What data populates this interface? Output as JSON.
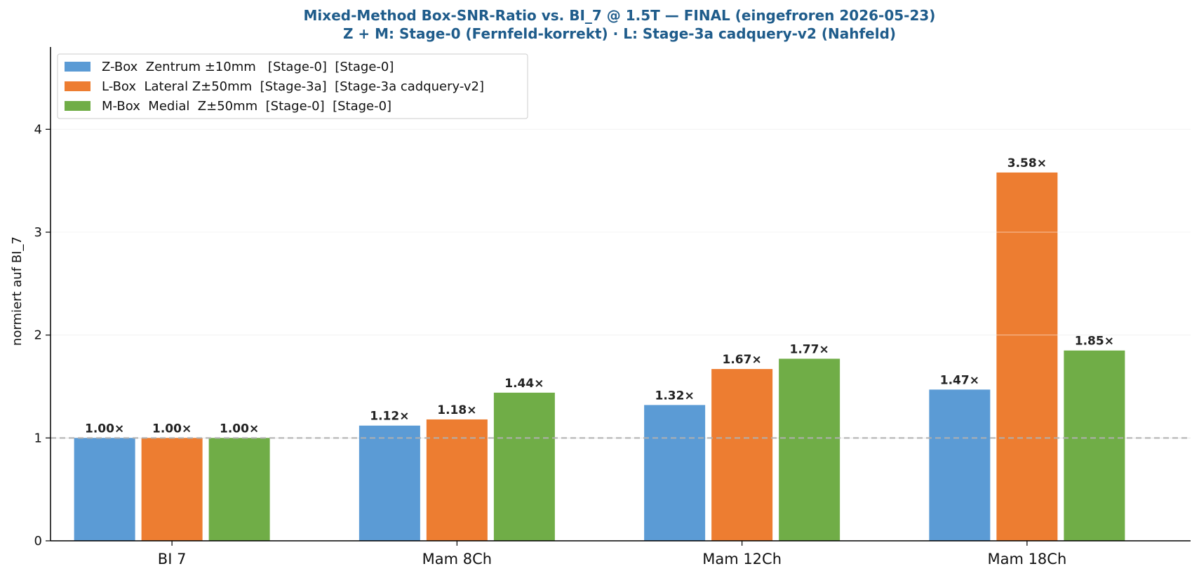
{
  "chart_data": {
    "type": "bar",
    "title": "Mixed-Method Box-SNR-Ratio vs. BI_7 @ 1.5T — FINAL (eingefroren 2026-05-23)",
    "subtitle": "Z + M: Stage-0 (Fernfeld-korrekt) · L: Stage-3a cadquery-v2 (Nahfeld)",
    "xlabel": "",
    "ylabel": "normiert auf BI_7",
    "categories": [
      "BI 7",
      "Mam 8Ch",
      "Mam 12Ch",
      "Mam 18Ch"
    ],
    "ylim": [
      0,
      4.8
    ],
    "yticks": [
      0,
      1,
      2,
      3,
      4
    ],
    "reference_line": 1.0,
    "grid": "horizontal",
    "legend_position": "top-left",
    "value_suffix": "×",
    "series": [
      {
        "name": "Z-Box  Zentrum ±10mm   [Stage-0]  [Stage-0]",
        "color": "#5b9bd5",
        "values": [
          1.0,
          1.12,
          1.32,
          1.47
        ]
      },
      {
        "name": "L-Box  Lateral Z±50mm  [Stage-3a]  [Stage-3a cadquery-v2]",
        "color": "#ed7d31",
        "values": [
          1.0,
          1.18,
          1.67,
          3.58
        ]
      },
      {
        "name": "M-Box  Medial  Z±50mm  [Stage-0]  [Stage-0]",
        "color": "#70ad47",
        "values": [
          1.0,
          1.44,
          1.77,
          1.85
        ]
      }
    ]
  }
}
